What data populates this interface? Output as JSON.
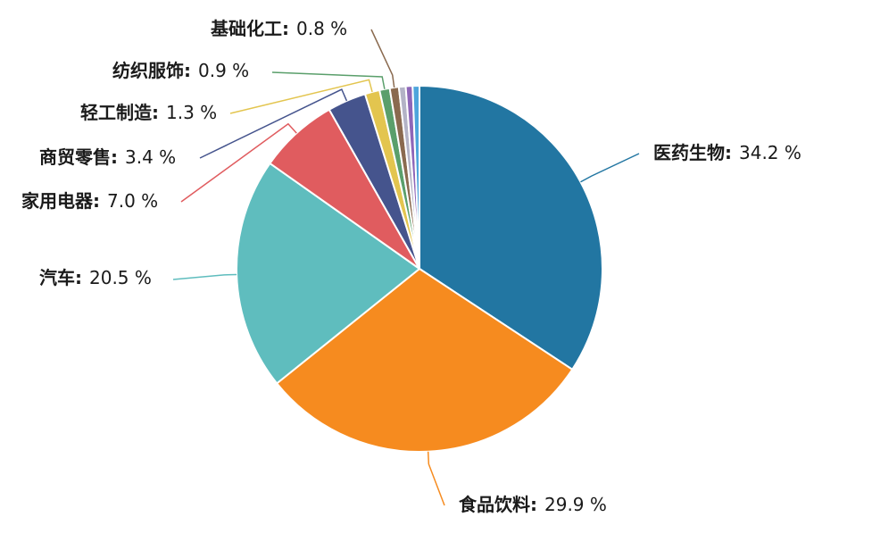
{
  "chart_data": {
    "type": "pie",
    "legend": "none",
    "slices": [
      {
        "name": "医药生物",
        "value": 34.2,
        "label": "34.2 %",
        "color": "#2276a2"
      },
      {
        "name": "食品饮料",
        "value": 29.9,
        "label": "29.9 %",
        "color": "#f68b1f"
      },
      {
        "name": "汽车",
        "value": 20.5,
        "label": "20.5 %",
        "color": "#5fbdbe"
      },
      {
        "name": "家用电器",
        "value": 7.0,
        "label": "7.0 %",
        "color": "#e05c5f"
      },
      {
        "name": "商贸零售",
        "value": 3.4,
        "label": "3.4 %",
        "color": "#45548d"
      },
      {
        "name": "轻工制造",
        "value": 1.3,
        "label": "1.3 %",
        "color": "#e3c54f"
      },
      {
        "name": "纺织服饰",
        "value": 0.9,
        "label": "0.9 %",
        "color": "#5a9f6b"
      },
      {
        "name": "基础化工",
        "value": 0.8,
        "label": "0.8 %",
        "color": "#8a6a4f"
      },
      {
        "name": "",
        "value": 0.6,
        "label": "",
        "color": "#b3b3c6"
      },
      {
        "name": "",
        "value": 0.6,
        "label": "",
        "color": "#8e66b8"
      },
      {
        "name": "",
        "value": 0.6,
        "label": "",
        "color": "#4ea5dc"
      }
    ]
  }
}
